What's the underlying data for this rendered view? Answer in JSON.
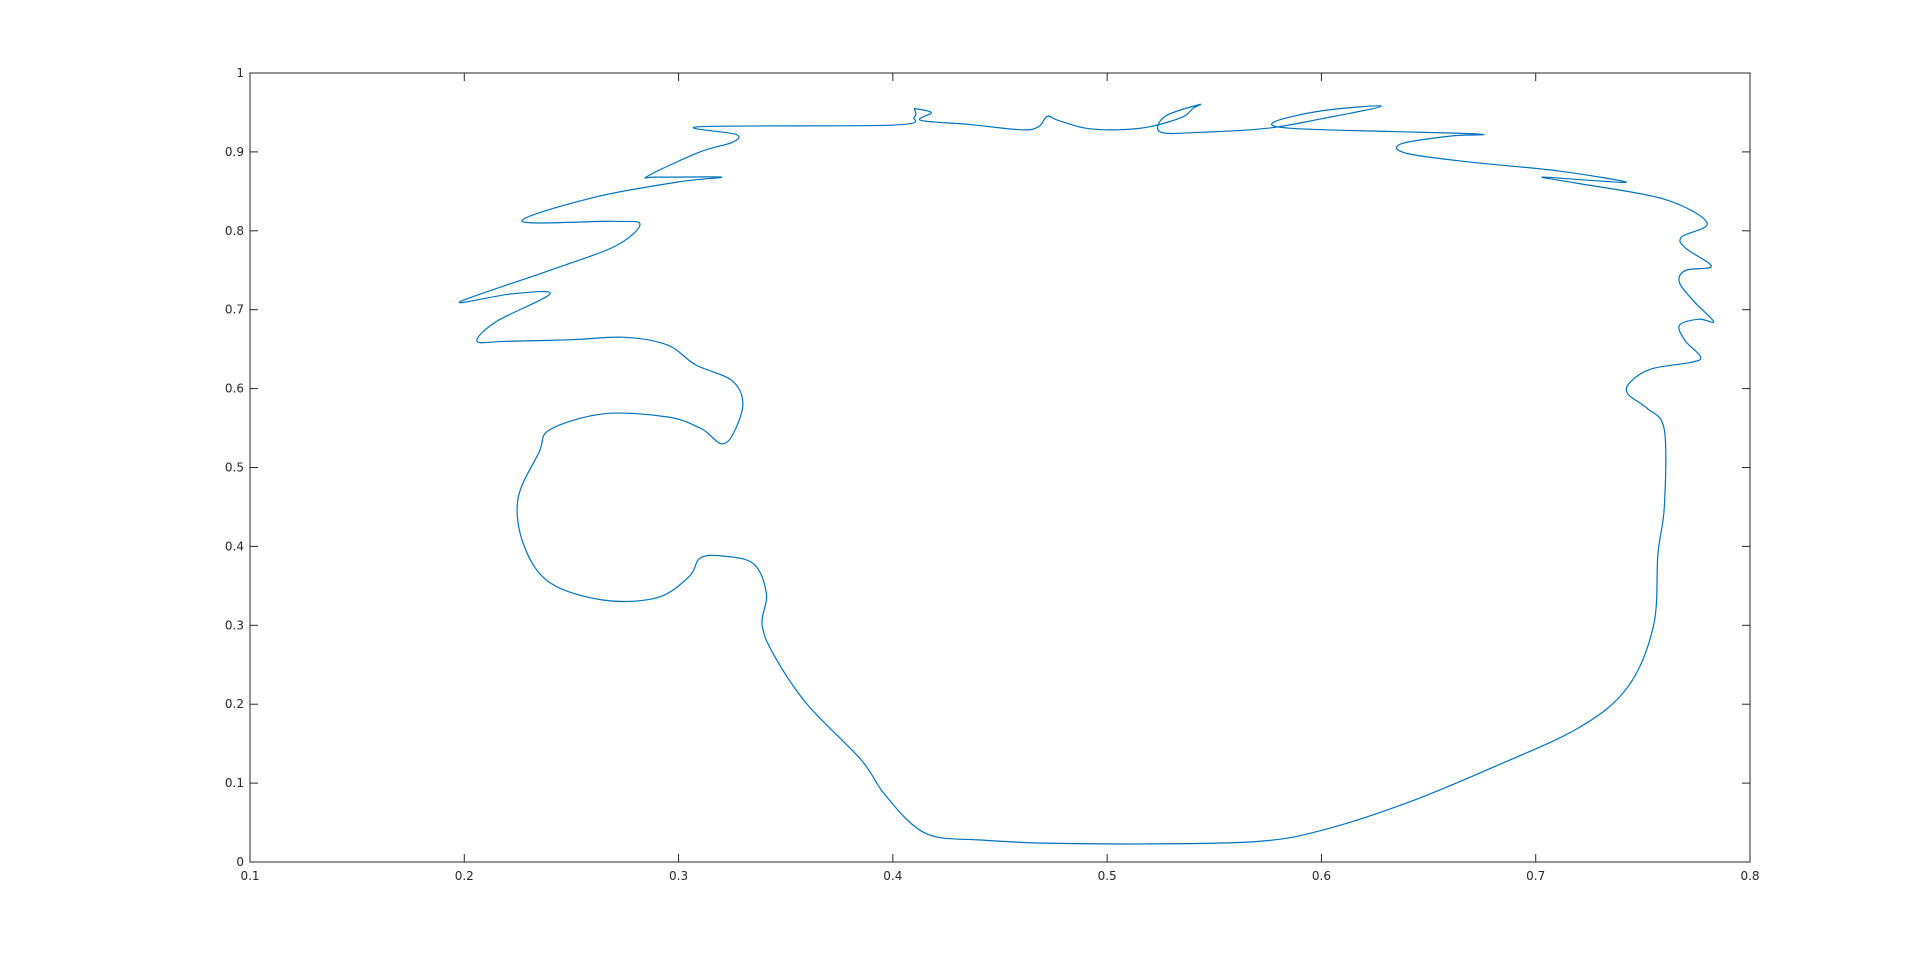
{
  "chart_data": {
    "type": "line",
    "title": "",
    "xlabel": "",
    "ylabel": "",
    "xlim": [
      0.1,
      0.8
    ],
    "ylim": [
      0,
      1
    ],
    "grid": false,
    "x_ticks": [
      "0.1",
      "0.2",
      "0.3",
      "0.4",
      "0.5",
      "0.6",
      "0.7",
      "0.8"
    ],
    "y_ticks": [
      "0",
      "0.1",
      "0.2",
      "0.3",
      "0.4",
      "0.5",
      "0.6",
      "0.7",
      "0.8",
      "0.9",
      "1"
    ],
    "series": [
      {
        "color": "#0072bd",
        "x": [
          0.41,
          0.418,
          0.413,
          0.435,
          0.46,
          0.468,
          0.472,
          0.477,
          0.49,
          0.505,
          0.52,
          0.535,
          0.54,
          0.543,
          0.527,
          0.525,
          0.545,
          0.575,
          0.6,
          0.628,
          0.6,
          0.578,
          0.585,
          0.63,
          0.66,
          0.676,
          0.66,
          0.637,
          0.64,
          0.67,
          0.71,
          0.742,
          0.725,
          0.703,
          0.72,
          0.76,
          0.78,
          0.768,
          0.77,
          0.782,
          0.77,
          0.767,
          0.774,
          0.783,
          0.776,
          0.767,
          0.77,
          0.777,
          0.772,
          0.754,
          0.744,
          0.743,
          0.752,
          0.76,
          0.76,
          0.757,
          0.755,
          0.743,
          0.72,
          0.68,
          0.64,
          0.6,
          0.57,
          0.52,
          0.47,
          0.44,
          0.42,
          0.408,
          0.395,
          0.385,
          0.36,
          0.345,
          0.339,
          0.341,
          0.335,
          0.32,
          0.31,
          0.305,
          0.29,
          0.265,
          0.24,
          0.228,
          0.225,
          0.235,
          0.24,
          0.265,
          0.295,
          0.31,
          0.315,
          0.32,
          0.325,
          0.33,
          0.325,
          0.308,
          0.295,
          0.275,
          0.25,
          0.22,
          0.206,
          0.215,
          0.24,
          0.222,
          0.198,
          0.24,
          0.27,
          0.282,
          0.27,
          0.227,
          0.26,
          0.3,
          0.32,
          0.29,
          0.286,
          0.31,
          0.325,
          0.327,
          0.31,
          0.4,
          0.41,
          0.41
        ],
        "y": [
          0.955,
          0.95,
          0.94,
          0.935,
          0.928,
          0.932,
          0.945,
          0.94,
          0.93,
          0.928,
          0.932,
          0.944,
          0.955,
          0.96,
          0.945,
          0.925,
          0.925,
          0.93,
          0.942,
          0.958,
          0.952,
          0.938,
          0.93,
          0.926,
          0.924,
          0.922,
          0.92,
          0.91,
          0.898,
          0.887,
          0.876,
          0.862,
          0.864,
          0.868,
          0.86,
          0.84,
          0.81,
          0.792,
          0.778,
          0.755,
          0.75,
          0.735,
          0.71,
          0.685,
          0.688,
          0.68,
          0.66,
          0.64,
          0.633,
          0.625,
          0.608,
          0.593,
          0.575,
          0.548,
          0.45,
          0.39,
          0.3,
          0.222,
          0.17,
          0.12,
          0.075,
          0.04,
          0.026,
          0.023,
          0.024,
          0.028,
          0.032,
          0.05,
          0.09,
          0.13,
          0.2,
          0.26,
          0.3,
          0.34,
          0.378,
          0.388,
          0.385,
          0.362,
          0.335,
          0.332,
          0.354,
          0.4,
          0.46,
          0.52,
          0.548,
          0.568,
          0.564,
          0.55,
          0.54,
          0.53,
          0.54,
          0.58,
          0.61,
          0.63,
          0.655,
          0.665,
          0.662,
          0.66,
          0.66,
          0.685,
          0.72,
          0.72,
          0.71,
          0.75,
          0.78,
          0.808,
          0.812,
          0.812,
          0.842,
          0.862,
          0.868,
          0.868,
          0.87,
          0.9,
          0.912,
          0.922,
          0.932,
          0.934,
          0.944,
          0.955
        ]
      }
    ]
  }
}
